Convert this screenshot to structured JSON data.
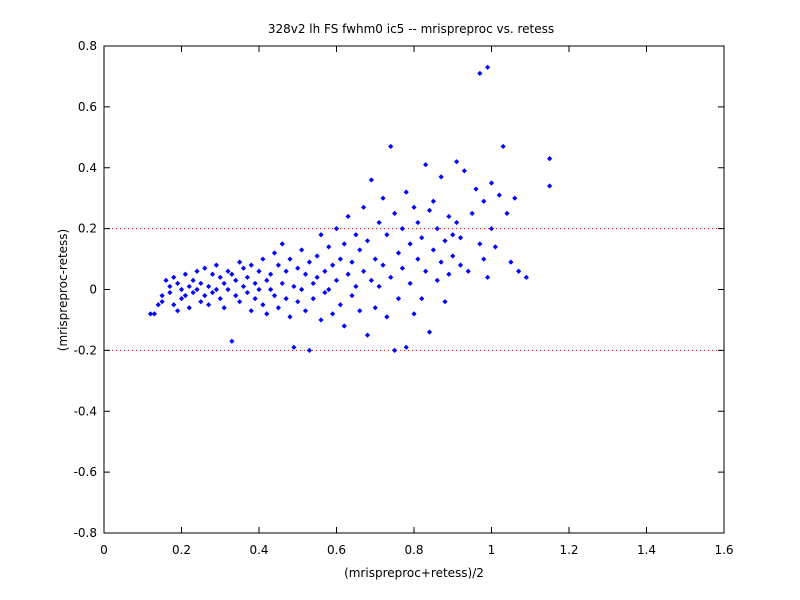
{
  "chart_data": {
    "type": "scatter",
    "title": "328v2 lh FS fwhm0 ic5 -- mrispreproc vs. retess",
    "xlabel": "(mrispreproc+retess)/2",
    "ylabel": "(mrispreproc-retess)",
    "xlim": [
      0,
      1.6
    ],
    "ylim": [
      -0.8,
      0.8
    ],
    "xticks": [
      "0",
      "0.2",
      "0.4",
      "0.6",
      "0.8",
      "1",
      "1.2",
      "1.4",
      "1.6"
    ],
    "yticks": [
      "-0.8",
      "-0.6",
      "-0.4",
      "-0.2",
      "0",
      "0.2",
      "0.4",
      "0.6",
      "0.8"
    ],
    "grid": false,
    "reference_lines_y": [
      0.2,
      -0.2
    ],
    "colors": {
      "points": "#0000ff",
      "reference": "#ff0000",
      "axes": "#000000"
    },
    "series": [
      {
        "marker": "diamond",
        "points": [
          [
            0.12,
            -0.08
          ],
          [
            0.13,
            -0.08
          ],
          [
            0.14,
            -0.05
          ],
          [
            0.15,
            -0.02
          ],
          [
            0.15,
            -0.04
          ],
          [
            0.16,
            0.03
          ],
          [
            0.17,
            -0.01
          ],
          [
            0.17,
            0.01
          ],
          [
            0.18,
            -0.05
          ],
          [
            0.18,
            0.04
          ],
          [
            0.19,
            -0.07
          ],
          [
            0.19,
            0.02
          ],
          [
            0.2,
            0.0
          ],
          [
            0.2,
            -0.03
          ],
          [
            0.21,
            0.05
          ],
          [
            0.21,
            -0.02
          ],
          [
            0.22,
            0.01
          ],
          [
            0.22,
            -0.06
          ],
          [
            0.23,
            0.03
          ],
          [
            0.23,
            -0.01
          ],
          [
            0.24,
            0.0
          ],
          [
            0.24,
            0.06
          ],
          [
            0.25,
            -0.04
          ],
          [
            0.25,
            0.02
          ],
          [
            0.26,
            0.07
          ],
          [
            0.26,
            -0.02
          ],
          [
            0.27,
            0.01
          ],
          [
            0.27,
            -0.05
          ],
          [
            0.28,
            0.05
          ],
          [
            0.28,
            -0.01
          ],
          [
            0.29,
            0.08
          ],
          [
            0.29,
            0.0
          ],
          [
            0.3,
            -0.03
          ],
          [
            0.3,
            0.04
          ],
          [
            0.31,
            0.02
          ],
          [
            0.31,
            -0.06
          ],
          [
            0.32,
            0.06
          ],
          [
            0.32,
            0.0
          ],
          [
            0.33,
            -0.17
          ],
          [
            0.33,
            0.05
          ],
          [
            0.34,
            0.03
          ],
          [
            0.34,
            -0.02
          ],
          [
            0.35,
            0.09
          ],
          [
            0.35,
            -0.04
          ],
          [
            0.36,
            0.01
          ],
          [
            0.36,
            0.07
          ],
          [
            0.37,
            -0.01
          ],
          [
            0.37,
            0.04
          ],
          [
            0.38,
            0.08
          ],
          [
            0.38,
            -0.07
          ],
          [
            0.39,
            0.02
          ],
          [
            0.39,
            -0.03
          ],
          [
            0.4,
            0.06
          ],
          [
            0.4,
            0.0
          ],
          [
            0.41,
            -0.05
          ],
          [
            0.41,
            0.1
          ],
          [
            0.42,
            0.03
          ],
          [
            0.42,
            -0.08
          ],
          [
            0.43,
            0.05
          ],
          [
            0.43,
            0.0
          ],
          [
            0.44,
            0.12
          ],
          [
            0.44,
            -0.02
          ],
          [
            0.45,
            0.08
          ],
          [
            0.45,
            -0.06
          ],
          [
            0.46,
            0.02
          ],
          [
            0.46,
            0.15
          ],
          [
            0.47,
            -0.03
          ],
          [
            0.47,
            0.06
          ],
          [
            0.48,
            0.1
          ],
          [
            0.48,
            -0.09
          ],
          [
            0.49,
            0.01
          ],
          [
            0.49,
            -0.19
          ],
          [
            0.5,
            0.07
          ],
          [
            0.5,
            -0.04
          ],
          [
            0.51,
            0.13
          ],
          [
            0.51,
            0.0
          ],
          [
            0.52,
            -0.07
          ],
          [
            0.52,
            0.05
          ],
          [
            0.53,
            -0.2
          ],
          [
            0.53,
            0.09
          ],
          [
            0.54,
            0.02
          ],
          [
            0.54,
            -0.03
          ],
          [
            0.55,
            0.11
          ],
          [
            0.55,
            0.04
          ],
          [
            0.56,
            -0.1
          ],
          [
            0.56,
            0.18
          ],
          [
            0.57,
            0.06
          ],
          [
            0.57,
            -0.01
          ],
          [
            0.58,
            0.14
          ],
          [
            0.58,
            0.0
          ],
          [
            0.59,
            -0.08
          ],
          [
            0.59,
            0.08
          ],
          [
            0.6,
            0.2
          ],
          [
            0.6,
            0.03
          ],
          [
            0.61,
            -0.05
          ],
          [
            0.61,
            0.1
          ],
          [
            0.62,
            0.15
          ],
          [
            0.62,
            -0.12
          ],
          [
            0.63,
            0.05
          ],
          [
            0.63,
            0.24
          ],
          [
            0.64,
            -0.02
          ],
          [
            0.64,
            0.09
          ],
          [
            0.65,
            0.18
          ],
          [
            0.65,
            0.01
          ],
          [
            0.66,
            -0.07
          ],
          [
            0.66,
            0.13
          ],
          [
            0.67,
            0.27
          ],
          [
            0.67,
            0.06
          ],
          [
            0.68,
            -0.15
          ],
          [
            0.68,
            0.16
          ],
          [
            0.69,
            0.03
          ],
          [
            0.69,
            0.36
          ],
          [
            0.7,
            0.1
          ],
          [
            0.7,
            -0.06
          ],
          [
            0.71,
            0.22
          ],
          [
            0.71,
            0.01
          ],
          [
            0.72,
            0.3
          ],
          [
            0.72,
            0.08
          ],
          [
            0.73,
            -0.09
          ],
          [
            0.73,
            0.18
          ],
          [
            0.74,
            0.47
          ],
          [
            0.74,
            0.04
          ],
          [
            0.75,
            -0.2
          ],
          [
            0.75,
            0.25
          ],
          [
            0.76,
            0.12
          ],
          [
            0.76,
            -0.03
          ],
          [
            0.77,
            0.2
          ],
          [
            0.77,
            0.07
          ],
          [
            0.78,
            -0.19
          ],
          [
            0.78,
            0.32
          ],
          [
            0.79,
            0.15
          ],
          [
            0.79,
            0.02
          ],
          [
            0.8,
            0.27
          ],
          [
            0.8,
            -0.08
          ],
          [
            0.81,
            0.1
          ],
          [
            0.81,
            0.22
          ],
          [
            0.82,
            -0.03
          ],
          [
            0.82,
            0.17
          ],
          [
            0.83,
            0.41
          ],
          [
            0.83,
            0.06
          ],
          [
            0.84,
            0.26
          ],
          [
            0.84,
            -0.14
          ],
          [
            0.85,
            0.13
          ],
          [
            0.85,
            0.29
          ],
          [
            0.86,
            0.03
          ],
          [
            0.86,
            0.2
          ],
          [
            0.87,
            0.37
          ],
          [
            0.87,
            0.09
          ],
          [
            0.88,
            0.16
          ],
          [
            0.88,
            -0.04
          ],
          [
            0.89,
            0.24
          ],
          [
            0.89,
            0.05
          ],
          [
            0.9,
            0.18
          ],
          [
            0.9,
            0.11
          ],
          [
            0.91,
            0.42
          ],
          [
            0.91,
            0.22
          ],
          [
            0.92,
            0.08
          ],
          [
            0.92,
            0.17
          ],
          [
            0.93,
            0.39
          ],
          [
            0.94,
            0.06
          ],
          [
            0.95,
            0.25
          ],
          [
            0.96,
            0.33
          ],
          [
            0.97,
            0.71
          ],
          [
            0.97,
            0.15
          ],
          [
            0.98,
            0.29
          ],
          [
            0.98,
            0.1
          ],
          [
            0.99,
            0.73
          ],
          [
            0.99,
            0.04
          ],
          [
            1.0,
            0.35
          ],
          [
            1.0,
            0.2
          ],
          [
            1.01,
            0.14
          ],
          [
            1.02,
            0.31
          ],
          [
            1.03,
            0.47
          ],
          [
            1.04,
            0.25
          ],
          [
            1.05,
            0.09
          ],
          [
            1.06,
            0.3
          ],
          [
            1.07,
            0.06
          ],
          [
            1.09,
            0.04
          ],
          [
            1.15,
            0.43
          ],
          [
            1.15,
            0.34
          ]
        ]
      }
    ]
  }
}
